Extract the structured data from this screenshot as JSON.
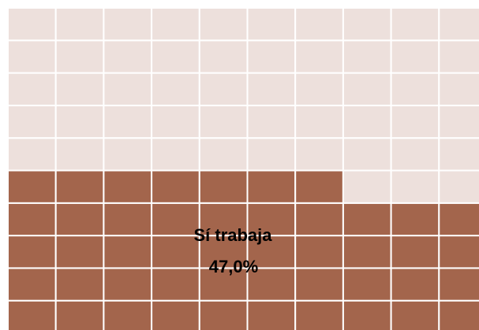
{
  "chart_data": {
    "type": "waffle",
    "label": "Sí trabaja",
    "value": 47,
    "value_label": "47,0%",
    "rows": 10,
    "columns": 10,
    "color": "#a3654c",
    "empty_color": "#ede0dc"
  }
}
